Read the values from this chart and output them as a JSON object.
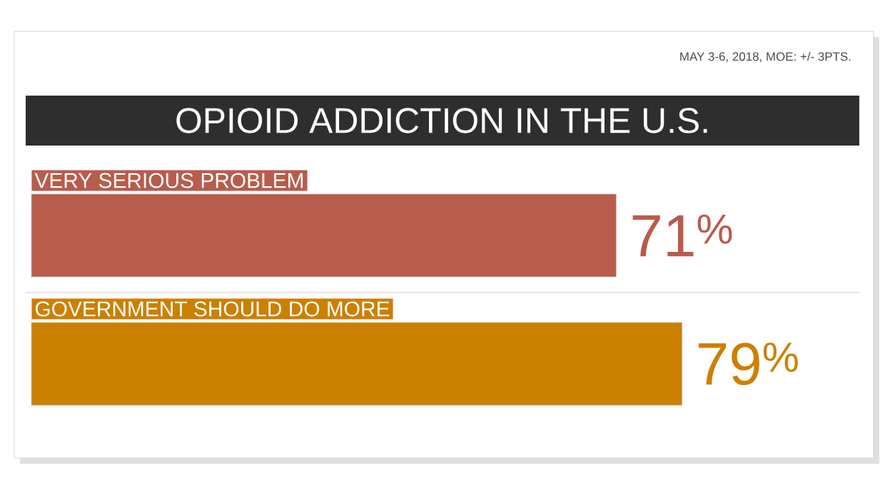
{
  "chart_data": {
    "type": "bar",
    "orientation": "horizontal",
    "title": "OPIOID ADDICTION IN THE U.S.",
    "annotations": [
      "MAY 3-6, 2018, MOE: +/- 3PTS."
    ],
    "categories": [
      "VERY SERIOUS PROBLEM",
      "GOVERNMENT SHOULD DO MORE"
    ],
    "values": [
      71,
      79
    ],
    "colors": [
      "#b85c4c",
      "#cc8000"
    ],
    "value_labels": [
      "71$^{%}$",
      "79$^{%}$"
    ],
    "tick_labels": false
  }
}
